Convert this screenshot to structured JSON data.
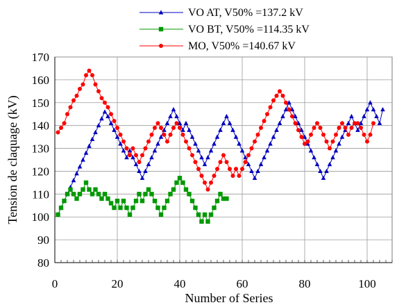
{
  "chart_data": {
    "type": "line",
    "xlabel": "Number of Series",
    "ylabel": "Tension de claquage  (kV)",
    "xlim": [
      0,
      108
    ],
    "ylim": [
      80,
      170
    ],
    "xticks": [
      0,
      20,
      40,
      60,
      80,
      100
    ],
    "yticks": [
      80,
      90,
      100,
      110,
      120,
      130,
      140,
      150,
      160,
      170
    ],
    "grid": true,
    "legend_position": "top",
    "series": [
      {
        "name": "VO AT, V50% =137.2 kV",
        "color": "#0000c0",
        "marker": "triangle",
        "x": [
          1,
          2,
          3,
          4,
          5,
          6,
          7,
          8,
          9,
          10,
          11,
          12,
          13,
          14,
          15,
          16,
          17,
          18,
          19,
          20,
          21,
          22,
          23,
          24,
          25,
          26,
          27,
          28,
          29,
          30,
          31,
          32,
          33,
          34,
          35,
          36,
          37,
          38,
          39,
          40,
          41,
          42,
          43,
          44,
          45,
          46,
          47,
          48,
          49,
          50,
          51,
          52,
          53,
          54,
          55,
          56,
          57,
          58,
          59,
          60,
          61,
          62,
          63,
          64,
          65,
          66,
          67,
          68,
          69,
          70,
          71,
          72,
          73,
          74,
          75,
          76,
          77,
          78,
          79,
          80,
          81,
          82,
          83,
          84,
          85,
          86,
          87,
          88,
          89,
          90,
          91,
          92,
          93,
          94,
          95,
          96,
          97,
          98,
          99,
          100,
          101,
          102,
          103,
          104,
          105
        ],
        "y": [
          101,
          104,
          107,
          110,
          113,
          116,
          119,
          122,
          125,
          128,
          131,
          134,
          137,
          140,
          143,
          146,
          144,
          141,
          138,
          135,
          132,
          129,
          126,
          129,
          126,
          123,
          120,
          117,
          120,
          123,
          126,
          129,
          132,
          135,
          138,
          141,
          144,
          147,
          144,
          141,
          138,
          141,
          138,
          135,
          132,
          129,
          126,
          123,
          126,
          129,
          132,
          135,
          138,
          141,
          144,
          141,
          138,
          135,
          132,
          129,
          126,
          123,
          120,
          117,
          120,
          123,
          126,
          129,
          132,
          135,
          138,
          141,
          144,
          147,
          150,
          147,
          144,
          141,
          138,
          135,
          132,
          129,
          126,
          123,
          120,
          117,
          120,
          123,
          126,
          129,
          132,
          135,
          138,
          141,
          144,
          141,
          138,
          141,
          144,
          147,
          150,
          147,
          144,
          141,
          147
        ]
      },
      {
        "name": "VO BT, V50% =114.35 kV",
        "color": "#009900",
        "marker": "square",
        "x": [
          1,
          2,
          3,
          4,
          5,
          6,
          7,
          8,
          9,
          10,
          11,
          12,
          13,
          14,
          15,
          16,
          17,
          18,
          19,
          20,
          21,
          22,
          23,
          24,
          25,
          26,
          27,
          28,
          29,
          30,
          31,
          32,
          33,
          34,
          35,
          36,
          37,
          38,
          39,
          40,
          41,
          42,
          43,
          44,
          45,
          46,
          47,
          48,
          49,
          50,
          51,
          52,
          53,
          54,
          55
        ],
        "y": [
          101,
          104,
          107,
          110,
          112,
          110,
          108,
          110,
          112,
          115,
          112,
          110,
          112,
          110,
          108,
          110,
          108,
          106,
          104,
          107,
          104,
          107,
          104,
          101,
          104,
          107,
          110,
          107,
          110,
          112,
          110,
          107,
          104,
          101,
          104,
          107,
          110,
          112,
          115,
          117,
          115,
          112,
          110,
          107,
          104,
          101,
          98,
          101,
          98,
          101,
          104,
          107,
          110,
          108,
          108
        ]
      },
      {
        "name": "MO, V50% =140.67 kV",
        "color": "#ff0000",
        "marker": "circle",
        "x": [
          1,
          2,
          3,
          4,
          5,
          6,
          7,
          8,
          9,
          10,
          11,
          12,
          13,
          14,
          15,
          16,
          17,
          18,
          19,
          20,
          21,
          22,
          23,
          24,
          25,
          26,
          27,
          28,
          29,
          30,
          31,
          32,
          33,
          34,
          35,
          36,
          37,
          38,
          39,
          40,
          41,
          42,
          43,
          44,
          45,
          46,
          47,
          48,
          49,
          50,
          51,
          52,
          53,
          54,
          55,
          56,
          57,
          58,
          59,
          60,
          61,
          62,
          63,
          64,
          65,
          66,
          67,
          68,
          69,
          70,
          71,
          72,
          73,
          74,
          75,
          76,
          77,
          78,
          79,
          80,
          81,
          82,
          83,
          84,
          85,
          86,
          87,
          88,
          89,
          90,
          91,
          92,
          93,
          94,
          95,
          96,
          97,
          98,
          99,
          100,
          101,
          102
        ],
        "y": [
          137,
          139,
          141,
          145,
          148,
          151,
          153,
          156,
          158,
          162,
          164,
          162,
          158,
          155,
          152,
          150,
          148,
          145,
          142,
          139,
          136,
          133,
          130,
          127,
          130,
          127,
          124,
          127,
          130,
          133,
          136,
          139,
          141,
          139,
          136,
          133,
          136,
          139,
          141,
          139,
          136,
          133,
          130,
          127,
          124,
          121,
          118,
          115,
          112,
          115,
          118,
          121,
          124,
          127,
          124,
          121,
          118,
          121,
          118,
          121,
          124,
          127,
          130,
          133,
          136,
          139,
          142,
          145,
          148,
          151,
          153,
          155,
          153,
          150,
          147,
          144,
          141,
          138,
          135,
          132,
          133,
          136,
          139,
          141,
          139,
          136,
          133,
          130,
          133,
          136,
          139,
          141,
          139,
          136,
          139,
          141,
          141,
          139,
          136,
          133,
          136,
          141
        ],
        "_note": "MO values tail"
      }
    ]
  }
}
